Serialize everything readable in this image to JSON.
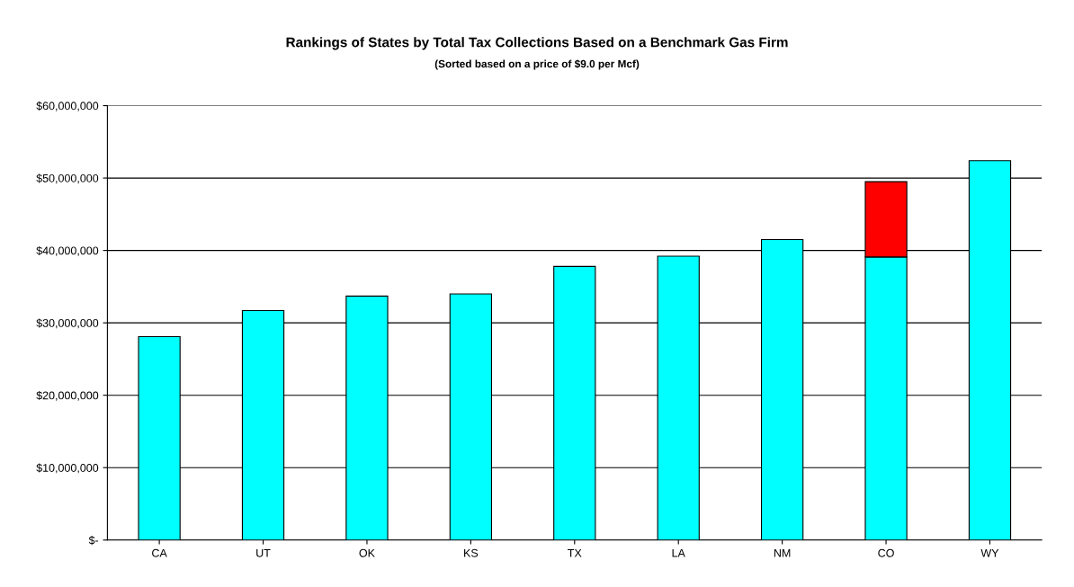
{
  "chart_data": {
    "type": "bar",
    "title": "Rankings of States by Total Tax Collections Based on a Benchmark Gas Firm",
    "subtitle": "(Sorted based on a price of $9.0 per Mcf)",
    "categories": [
      "CA",
      "UT",
      "OK",
      "KS",
      "TX",
      "LA",
      "NM",
      "CO",
      "WY"
    ],
    "stacked": true,
    "series": [
      {
        "color": "#00ffff",
        "values": [
          28100000,
          31700000,
          33700000,
          34000000,
          37800000,
          39200000,
          41500000,
          39100000,
          52400000
        ]
      },
      {
        "color": "#ff0000",
        "values": [
          null,
          null,
          null,
          null,
          null,
          null,
          null,
          10400000,
          null
        ]
      }
    ],
    "ylim": [
      0,
      60000000
    ],
    "yticks": [
      {
        "value": 0,
        "label": "$-"
      },
      {
        "value": 10000000,
        "label": "$10,000,000"
      },
      {
        "value": 20000000,
        "label": "$20,000,000"
      },
      {
        "value": 30000000,
        "label": "$30,000,000"
      },
      {
        "value": 40000000,
        "label": "$40,000,000"
      },
      {
        "value": 50000000,
        "label": "$50,000,000"
      },
      {
        "value": 60000000,
        "label": "$60,000,000"
      }
    ],
    "grid": "y"
  }
}
